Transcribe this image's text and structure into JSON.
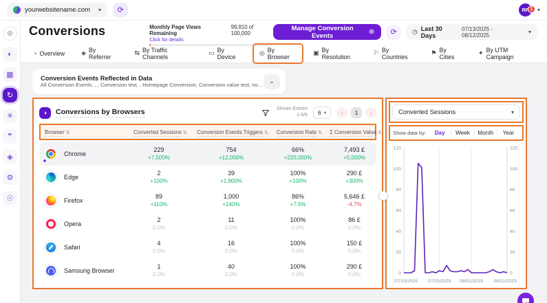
{
  "colors": {
    "annotation": "#e8782d",
    "accent": "#6d28d9",
    "positive": "#12b76a",
    "negative": "#e5484d",
    "muted": "#c0c4cb",
    "line": "#5b21b6"
  },
  "topbar": {
    "site": "yourwebsitename.com",
    "avatar_initials": "RF",
    "notification_count": "1"
  },
  "header": {
    "title": "Conversions",
    "quota_label": "Monthly Page Views Remaining",
    "quota_value": "99,810 of 100,000",
    "quota_link": "Click for details",
    "manage_button": "Manage Conversion Events",
    "period_label": "Last 30 Days",
    "date_range": "07/13/2025 - 08/12/2025"
  },
  "sidebar": {
    "items": [
      {
        "icon": "add-target-icon",
        "active": false
      },
      {
        "icon": "dashboard-icon",
        "active": false
      },
      {
        "icon": "calendar-icon",
        "active": false
      },
      {
        "icon": "conversions-icon",
        "active": true
      },
      {
        "icon": "ai-assistant-icon",
        "active": false
      },
      {
        "icon": "chat-icon",
        "active": false
      },
      {
        "icon": "shield-icon",
        "active": false
      },
      {
        "icon": "settings-icon",
        "active": false
      },
      {
        "icon": "profile-icon",
        "active": false
      }
    ]
  },
  "tabs": [
    {
      "label": "Overview",
      "icon": "overview-icon",
      "active": false
    },
    {
      "label": "By Referrer",
      "icon": "referrer-icon",
      "active": false
    },
    {
      "label": "By Traffic Channels",
      "icon": "traffic-channels-icon",
      "active": false
    },
    {
      "label": "By Device",
      "icon": "device-icon",
      "active": false
    },
    {
      "label": "By Browser",
      "icon": "browser-icon",
      "active": true
    },
    {
      "label": "By Resolution",
      "icon": "resolution-icon",
      "active": false
    },
    {
      "label": "By Countries",
      "icon": "countries-icon",
      "active": false
    },
    {
      "label": "By Cities",
      "icon": "cities-icon",
      "active": false
    },
    {
      "label": "By UTM Campaign",
      "icon": "utm-campaign-icon",
      "active": false
    }
  ],
  "banner": {
    "title": "Conversion Events Reflected in Data",
    "subtitle": "All Conversion Events, , , Conversion test, , Homepage Conversion, Conversion value test, no_Note_conver..."
  },
  "table": {
    "title": "Conversions by Browsers",
    "shown_entries_label": "Shown Entries",
    "shown_entries_value": "1-6/6",
    "page_size": "6",
    "current_page": "1",
    "columns": [
      "Browser",
      "Converted Sessions",
      "Conversion Events Triggers",
      "Conversion Rate",
      "Σ Conversion Value"
    ],
    "rows": [
      {
        "id": "chrome",
        "browser": "Chrome",
        "highlight": true,
        "metrics": [
          {
            "value": "229",
            "delta": "+7,500%",
            "dir": "up"
          },
          {
            "value": "754",
            "delta": "+12,000%",
            "dir": "up"
          },
          {
            "value": "66%",
            "delta": "+220,000%",
            "dir": "up"
          },
          {
            "value": "7,493 £",
            "delta": "+5,000%",
            "dir": "up"
          }
        ]
      },
      {
        "id": "edge",
        "browser": "Edge",
        "highlight": false,
        "metrics": [
          {
            "value": "2",
            "delta": "+100%",
            "dir": "up"
          },
          {
            "value": "39",
            "delta": "+1,900%",
            "dir": "up"
          },
          {
            "value": "100%",
            "delta": "+100%",
            "dir": "up"
          },
          {
            "value": "290 £",
            "delta": "+300%",
            "dir": "up"
          }
        ]
      },
      {
        "id": "firefox",
        "browser": "Firefox",
        "highlight": false,
        "metrics": [
          {
            "value": "89",
            "delta": "+110%",
            "dir": "up"
          },
          {
            "value": "1,000",
            "delta": "+140%",
            "dir": "up"
          },
          {
            "value": "86%",
            "delta": "+7.5%",
            "dir": "up"
          },
          {
            "value": "5,646 £",
            "delta": "-4.7%",
            "dir": "down"
          }
        ]
      },
      {
        "id": "opera",
        "browser": "Opera",
        "highlight": false,
        "metrics": [
          {
            "value": "2",
            "delta": "0.0%",
            "dir": "flat"
          },
          {
            "value": "11",
            "delta": "0.0%",
            "dir": "flat"
          },
          {
            "value": "100%",
            "delta": "0.0%",
            "dir": "flat"
          },
          {
            "value": "86 £",
            "delta": "0.0%",
            "dir": "flat"
          }
        ]
      },
      {
        "id": "safari",
        "browser": "Safari",
        "highlight": false,
        "metrics": [
          {
            "value": "4",
            "delta": "0.0%",
            "dir": "flat"
          },
          {
            "value": "16",
            "delta": "0.0%",
            "dir": "flat"
          },
          {
            "value": "100%",
            "delta": "0.0%",
            "dir": "flat"
          },
          {
            "value": "150 £",
            "delta": "0.0%",
            "dir": "flat"
          }
        ]
      },
      {
        "id": "samsung",
        "browser": "Samsung Browser",
        "highlight": false,
        "metrics": [
          {
            "value": "1",
            "delta": "0.0%",
            "dir": "flat"
          },
          {
            "value": "40",
            "delta": "0.0%",
            "dir": "flat"
          },
          {
            "value": "100%",
            "delta": "0.0%",
            "dir": "flat"
          },
          {
            "value": "290 £",
            "delta": "0.0%",
            "dir": "flat"
          }
        ]
      }
    ]
  },
  "right_panel": {
    "metric_select": "Converted Sessions",
    "show_data_by_label": "Show data by:",
    "periods": [
      "Day",
      "Week",
      "Month",
      "Year"
    ],
    "active_period": "Day",
    "chart_data": {
      "type": "line",
      "title": "Converted Sessions",
      "x": [
        "07/13/2025",
        "07/14/2025",
        "07/15/2025",
        "07/16/2025",
        "07/17/2025",
        "07/18/2025",
        "07/19/2025",
        "07/20/2025",
        "07/21/2025",
        "07/22/2025",
        "07/23/2025",
        "07/24/2025",
        "07/25/2025",
        "07/26/2025",
        "07/27/2025",
        "07/28/2025",
        "07/29/2025",
        "07/30/2025",
        "07/31/2025",
        "08/01/2025",
        "08/02/2025",
        "08/03/2025",
        "08/04/2025",
        "08/05/2025",
        "08/06/2025",
        "08/07/2025",
        "08/08/2025",
        "08/09/2025",
        "08/10/2025",
        "08/11/2025"
      ],
      "values": [
        0,
        0,
        0,
        2,
        105,
        101,
        0,
        0,
        1,
        0,
        2,
        1,
        7,
        2,
        1,
        1,
        2,
        1,
        3,
        0,
        0,
        0,
        0,
        0,
        1,
        3,
        1,
        0,
        1,
        0
      ],
      "ylim": [
        0,
        120
      ],
      "y_ticks": [
        0,
        20,
        40,
        60,
        80,
        100,
        120
      ],
      "x_tick_indices": [
        0,
        10,
        19,
        29
      ],
      "grid": "vertical",
      "legend": "none",
      "line_color": "#5b21b6"
    }
  }
}
